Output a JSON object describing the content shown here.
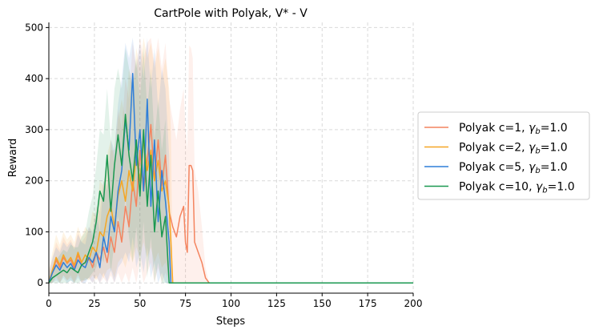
{
  "chart_data": {
    "type": "line",
    "title": "CartPole with Polyak, V* - V",
    "xlabel": "Steps",
    "ylabel": "Reward",
    "xlim": [
      0,
      200
    ],
    "ylim": [
      -20,
      510
    ],
    "xticks": [
      0,
      25,
      50,
      75,
      100,
      125,
      150,
      175,
      200
    ],
    "yticks": [
      0,
      100,
      200,
      300,
      400,
      500
    ],
    "grid": true,
    "legend_position": "outside-right",
    "series": [
      {
        "name": "Polyak c=1, γb=1.0",
        "legend_prefix": "Polyak c=1, ",
        "legend_gamma": "γ",
        "legend_sub": "b",
        "legend_suffix": "=1.0",
        "color": "#f4845f",
        "x": [
          0,
          2,
          4,
          6,
          8,
          10,
          12,
          14,
          16,
          18,
          20,
          22,
          24,
          26,
          28,
          30,
          32,
          34,
          36,
          38,
          40,
          42,
          44,
          46,
          48,
          50,
          52,
          54,
          56,
          58,
          60,
          62,
          64,
          66,
          68,
          70,
          72,
          74,
          75,
          76,
          77,
          78,
          79,
          80,
          82,
          84,
          86,
          88,
          200
        ],
        "y": [
          0,
          20,
          45,
          30,
          50,
          38,
          45,
          30,
          55,
          35,
          40,
          50,
          30,
          60,
          45,
          70,
          40,
          90,
          60,
          120,
          80,
          150,
          110,
          200,
          150,
          260,
          180,
          240,
          310,
          200,
          280,
          190,
          250,
          140,
          110,
          90,
          130,
          150,
          80,
          60,
          230,
          230,
          220,
          80,
          60,
          40,
          10,
          0,
          0
        ],
        "band_upper": [
          20,
          45,
          80,
          65,
          90,
          75,
          85,
          70,
          100,
          80,
          90,
          110,
          90,
          150,
          140,
          200,
          190,
          260,
          260,
          340,
          300,
          400,
          360,
          470,
          420,
          480,
          440,
          470,
          480,
          430,
          480,
          420,
          470,
          360,
          320,
          280,
          340,
          380,
          300,
          260,
          465,
          460,
          440,
          220,
          180,
          110,
          30,
          0,
          0
        ],
        "band_lower": [
          0,
          0,
          10,
          0,
          15,
          5,
          10,
          0,
          15,
          0,
          5,
          10,
          0,
          10,
          0,
          10,
          0,
          15,
          0,
          20,
          0,
          20,
          0,
          30,
          0,
          40,
          0,
          20,
          40,
          0,
          30,
          0,
          20,
          0,
          0,
          0,
          0,
          0,
          0,
          0,
          0,
          0,
          0,
          0,
          0,
          0,
          0,
          0,
          0
        ]
      },
      {
        "name": "Polyak c=2, γb=1.0",
        "legend_prefix": "Polyak c=2, ",
        "legend_gamma": "γ",
        "legend_sub": "b",
        "legend_suffix": "=1.0",
        "color": "#f5a623",
        "x": [
          0,
          2,
          4,
          6,
          8,
          10,
          12,
          14,
          16,
          18,
          20,
          22,
          24,
          26,
          28,
          30,
          32,
          34,
          36,
          38,
          40,
          42,
          44,
          46,
          48,
          50,
          52,
          54,
          56,
          58,
          60,
          62,
          64,
          66,
          67,
          68,
          200
        ],
        "y": [
          0,
          25,
          50,
          35,
          55,
          40,
          50,
          35,
          60,
          40,
          55,
          45,
          70,
          60,
          100,
          90,
          130,
          150,
          110,
          170,
          200,
          160,
          220,
          180,
          250,
          200,
          280,
          220,
          260,
          200,
          240,
          180,
          200,
          150,
          80,
          0,
          0
        ],
        "band_upper": [
          25,
          60,
          95,
          75,
          100,
          85,
          95,
          80,
          110,
          90,
          110,
          100,
          140,
          130,
          200,
          190,
          250,
          280,
          240,
          320,
          360,
          320,
          420,
          380,
          460,
          420,
          480,
          440,
          470,
          420,
          460,
          400,
          440,
          380,
          300,
          0,
          0
        ],
        "band_lower": [
          0,
          0,
          15,
          0,
          15,
          5,
          15,
          0,
          20,
          0,
          10,
          5,
          15,
          5,
          20,
          10,
          25,
          30,
          10,
          40,
          50,
          30,
          60,
          40,
          70,
          50,
          80,
          50,
          70,
          40,
          60,
          30,
          40,
          20,
          0,
          0,
          0
        ]
      },
      {
        "name": "Polyak c=5, γb=1.0",
        "legend_prefix": "Polyak c=5, ",
        "legend_gamma": "γ",
        "legend_sub": "b",
        "legend_suffix": "=1.0",
        "color": "#2f7ed8",
        "x": [
          0,
          2,
          4,
          6,
          8,
          10,
          12,
          14,
          16,
          18,
          20,
          22,
          24,
          26,
          28,
          30,
          32,
          34,
          36,
          38,
          40,
          42,
          44,
          46,
          48,
          50,
          52,
          54,
          56,
          58,
          60,
          62,
          64,
          66,
          67,
          200
        ],
        "y": [
          0,
          20,
          35,
          25,
          40,
          30,
          38,
          25,
          45,
          35,
          30,
          50,
          40,
          60,
          30,
          90,
          60,
          130,
          100,
          180,
          220,
          320,
          260,
          410,
          230,
          300,
          180,
          360,
          150,
          280,
          120,
          220,
          160,
          80,
          0,
          0
        ],
        "band_upper": [
          20,
          50,
          70,
          60,
          80,
          70,
          80,
          65,
          95,
          80,
          75,
          110,
          100,
          140,
          100,
          200,
          180,
          280,
          260,
          350,
          400,
          470,
          440,
          480,
          420,
          470,
          400,
          480,
          380,
          460,
          340,
          420,
          380,
          250,
          0,
          0
        ],
        "band_lower": [
          0,
          0,
          5,
          0,
          10,
          0,
          5,
          0,
          10,
          0,
          0,
          10,
          0,
          15,
          0,
          20,
          0,
          25,
          0,
          30,
          40,
          60,
          40,
          90,
          30,
          60,
          20,
          70,
          10,
          40,
          0,
          20,
          0,
          0,
          0,
          0
        ]
      },
      {
        "name": "Polyak c=10, γb=1.0",
        "legend_prefix": "Polyak c=10, ",
        "legend_gamma": "γ",
        "legend_sub": "b",
        "legend_suffix": "=1.0",
        "color": "#1a9850",
        "x": [
          0,
          2,
          4,
          6,
          8,
          10,
          12,
          14,
          16,
          18,
          20,
          22,
          24,
          26,
          28,
          30,
          32,
          34,
          36,
          38,
          40,
          42,
          44,
          46,
          48,
          50,
          52,
          54,
          56,
          58,
          60,
          62,
          64,
          66,
          200
        ],
        "y": [
          0,
          10,
          15,
          20,
          25,
          20,
          30,
          25,
          20,
          35,
          40,
          60,
          80,
          120,
          180,
          160,
          250,
          140,
          230,
          290,
          230,
          330,
          250,
          200,
          280,
          170,
          300,
          150,
          250,
          100,
          180,
          90,
          130,
          0,
          0
        ],
        "band_upper": [
          10,
          30,
          45,
          55,
          65,
          60,
          75,
          70,
          70,
          90,
          100,
          140,
          170,
          230,
          300,
          290,
          380,
          280,
          380,
          420,
          380,
          460,
          420,
          380,
          440,
          360,
          460,
          340,
          420,
          280,
          360,
          260,
          320,
          0,
          0
        ],
        "band_lower": [
          0,
          0,
          0,
          0,
          0,
          0,
          5,
          0,
          0,
          5,
          5,
          10,
          20,
          30,
          60,
          40,
          100,
          20,
          80,
          130,
          80,
          170,
          90,
          40,
          110,
          20,
          120,
          10,
          90,
          0,
          40,
          0,
          0,
          0,
          0
        ]
      }
    ]
  }
}
